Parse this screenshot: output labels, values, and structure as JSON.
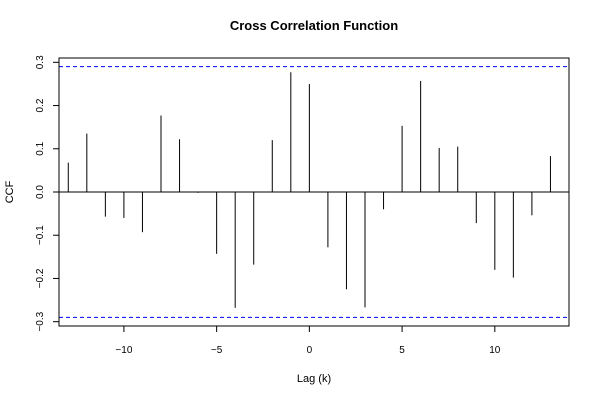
{
  "chart_data": {
    "type": "bar",
    "title": "Cross Correlation Function",
    "xlabel": "Lag (k)",
    "ylabel": "CCF",
    "xlim": [
      -13.5,
      14
    ],
    "ylim": [
      -0.31,
      0.31
    ],
    "x_ticks": [
      -10,
      -5,
      0,
      5,
      10
    ],
    "x_tick_labels": [
      "−10",
      "−5",
      "0",
      "5",
      "10"
    ],
    "y_ticks": [
      -0.3,
      -0.2,
      -0.1,
      0.0,
      0.1,
      0.2,
      0.3
    ],
    "y_tick_labels": [
      "−0.3",
      "−0.2",
      "−0.1",
      "0.0",
      "0.1",
      "0.2",
      "0.3"
    ],
    "confidence_bound": 0.29,
    "confidence_color": "#0000ff",
    "grid": false,
    "lags": [
      -13,
      -12,
      -11,
      -10,
      -9,
      -8,
      -7,
      -6,
      -5,
      -4,
      -3,
      -2,
      -1,
      0,
      1,
      2,
      3,
      4,
      5,
      6,
      7,
      8,
      9,
      10,
      11,
      12,
      13
    ],
    "values": [
      0.068,
      0.135,
      -0.057,
      -0.06,
      -0.093,
      0.177,
      0.122,
      -0.002,
      -0.143,
      -0.268,
      -0.168,
      0.12,
      0.277,
      0.25,
      -0.128,
      -0.225,
      -0.267,
      -0.04,
      0.153,
      0.257,
      0.102,
      0.105,
      -0.072,
      -0.18,
      -0.198,
      -0.054,
      0.083
    ]
  }
}
